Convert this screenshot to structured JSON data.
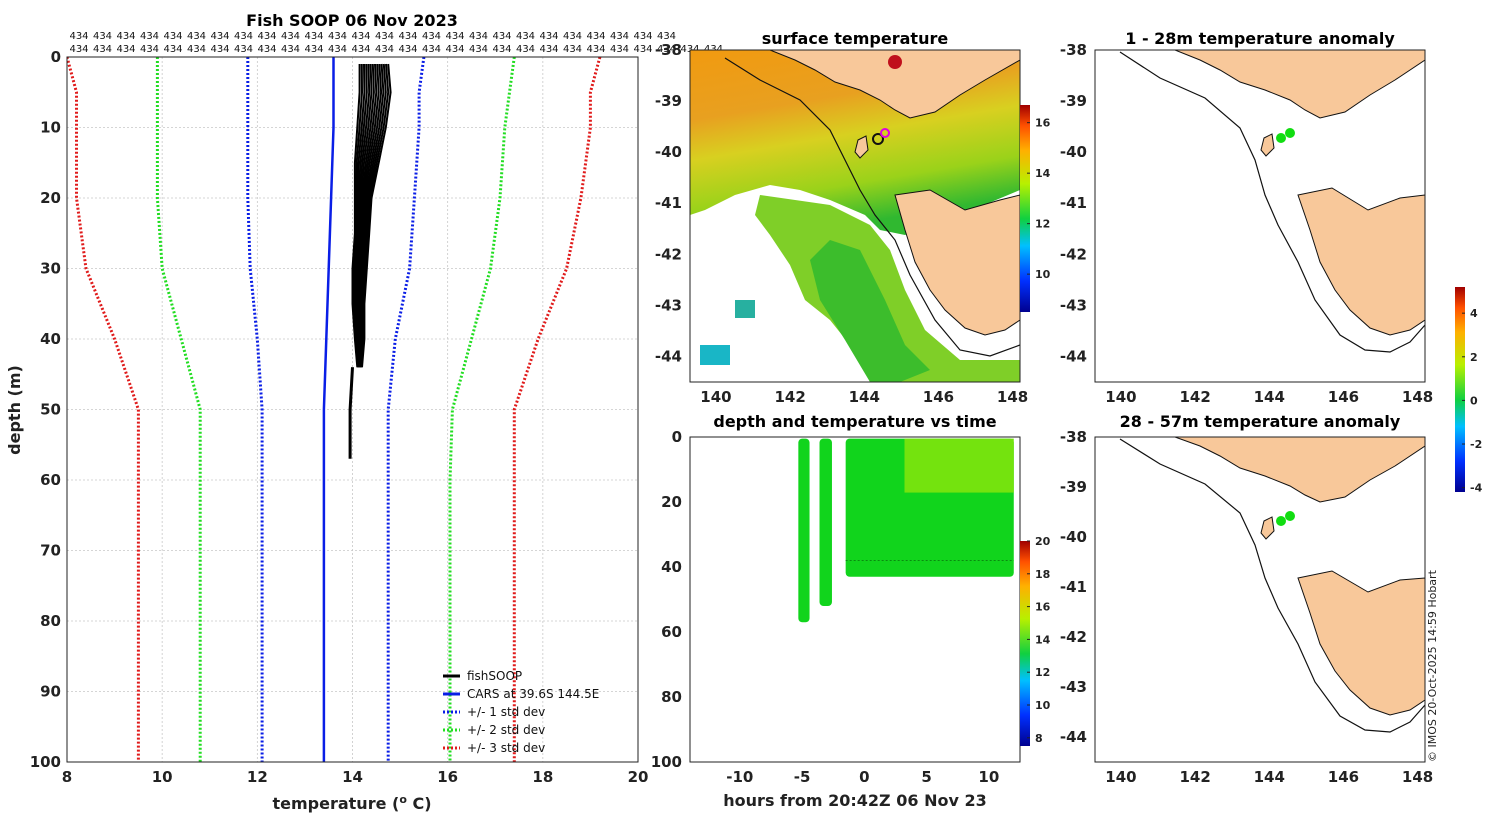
{
  "figure": {
    "credit": "© IMOS 20-Oct-2025 14:59 Hobart",
    "profile_count_label": "434",
    "colors": {
      "fish": "#000000",
      "cars": "#0a1ee6",
      "std1": "#0a1ee6",
      "std2": "#22dd22",
      "std3": "#e01b1b",
      "land": "#f8c89a",
      "point": "#11dd11"
    }
  },
  "chart_data": [
    {
      "id": "profile",
      "type": "line",
      "title": "Fish SOOP 06 Nov 2023",
      "xlabel": "temperature (",
      "xlabel_sup": "o",
      "xlabel_tail": " C)",
      "ylabel": "depth (m)",
      "xlim": [
        8,
        20
      ],
      "ylim": [
        0,
        100
      ],
      "xticks": [
        8,
        10,
        12,
        14,
        16,
        18,
        20
      ],
      "yticks": [
        0,
        10,
        20,
        30,
        40,
        50,
        60,
        70,
        80,
        90,
        100
      ],
      "depth": [
        0,
        5,
        10,
        20,
        30,
        40,
        50,
        60,
        70,
        80,
        90,
        100
      ],
      "series": [
        {
          "name": "CARS at 39.6S 144.5E",
          "style": "solid",
          "color": "#0a1ee6",
          "values": [
            13.6,
            13.6,
            13.6,
            13.55,
            13.5,
            13.45,
            13.4,
            13.4,
            13.4,
            13.4,
            13.4,
            13.4
          ]
        },
        {
          "name": "+/- 1 std dev (low)",
          "style": "dotted",
          "color": "#0a1ee6",
          "values": [
            11.8,
            11.8,
            11.8,
            11.8,
            11.85,
            12.0,
            12.1,
            12.1,
            12.1,
            12.1,
            12.1,
            12.1
          ]
        },
        {
          "name": "+/- 1 std dev (high)",
          "style": "dotted",
          "color": "#0a1ee6",
          "values": [
            15.5,
            15.4,
            15.4,
            15.3,
            15.2,
            14.9,
            14.75,
            14.75,
            14.75,
            14.75,
            14.75,
            14.75
          ]
        },
        {
          "name": "+/- 2 std dev (low)",
          "style": "dotted",
          "color": "#22dd22",
          "values": [
            9.9,
            9.9,
            9.9,
            9.9,
            10.0,
            10.4,
            10.8,
            10.8,
            10.8,
            10.8,
            10.8,
            10.8
          ]
        },
        {
          "name": "+/- 2 std dev (high)",
          "style": "dotted",
          "color": "#22dd22",
          "values": [
            17.4,
            17.3,
            17.2,
            17.1,
            16.9,
            16.5,
            16.1,
            16.05,
            16.05,
            16.05,
            16.05,
            16.05
          ]
        },
        {
          "name": "+/- 3 std dev (low)",
          "style": "dotted",
          "color": "#e01b1b",
          "values": [
            8.0,
            8.2,
            8.2,
            8.2,
            8.4,
            9.0,
            9.5,
            9.5,
            9.5,
            9.5,
            9.5,
            9.5
          ]
        },
        {
          "name": "+/- 3 std dev (high)",
          "style": "dotted",
          "color": "#e01b1b",
          "values": [
            19.2,
            19.0,
            19.0,
            18.8,
            18.5,
            17.9,
            17.4,
            17.4,
            17.4,
            17.4,
            17.4,
            17.4
          ]
        }
      ],
      "fish_profiles": {
        "name": "fishSOOP",
        "depth": [
          1,
          5,
          10,
          15,
          20,
          25,
          30,
          35,
          40,
          44
        ],
        "left_edge": [
          14.15,
          14.15,
          14.1,
          14.05,
          14.05,
          14.05,
          14.0,
          14.0,
          14.05,
          14.1
        ],
        "right_edge": [
          14.75,
          14.8,
          14.7,
          14.55,
          14.4,
          14.35,
          14.3,
          14.25,
          14.25,
          14.2
        ],
        "deep_trace": {
          "depth": [
            44,
            50,
            57
          ],
          "temp": [
            14.0,
            13.95,
            13.95
          ]
        }
      },
      "legend": [
        "fishSOOP",
        "CARS at 39.6S 144.5E",
        "+/- 1 std dev",
        "+/- 2 std dev",
        "+/- 3 std dev"
      ],
      "legend_position": "bottom-right"
    },
    {
      "id": "sst_map",
      "type": "heatmap",
      "title": "surface temperature",
      "xlim": [
        139.3,
        148.2
      ],
      "ylim": [
        -44.5,
        -38
      ],
      "xticks": [
        140,
        142,
        144,
        146,
        148
      ],
      "yticks": [
        -38,
        -39,
        -40,
        -41,
        -42,
        -43,
        -44
      ],
      "colorbar": {
        "ticks": [
          10,
          12,
          14,
          16
        ],
        "range": [
          8.5,
          16.7
        ]
      },
      "fish_location": {
        "lon": 144.6,
        "lat": -39.7
      }
    },
    {
      "id": "time_depth",
      "type": "scatter",
      "title": "depth and temperature vs time",
      "xlabel": "hours from 20:42Z 06 Nov 23",
      "xlim": [
        -14,
        12.5
      ],
      "ylim": [
        0,
        100
      ],
      "xticks": [
        -10,
        -5,
        0,
        5,
        10
      ],
      "yticks": [
        0,
        20,
        40,
        60,
        80,
        100
      ],
      "colorbar": {
        "ticks": [
          8,
          10,
          12,
          14,
          16,
          18,
          20
        ],
        "range": [
          7.5,
          20
        ]
      },
      "blocks": [
        {
          "t_start": -5.3,
          "t_end": -4.4,
          "max_depth": 57
        },
        {
          "t_start": -3.6,
          "t_end": -2.6,
          "max_depth": 52
        },
        {
          "t_start": -1.5,
          "t_end": 12.0,
          "max_depth": 43
        }
      ],
      "mixed_layer_depth": 38
    },
    {
      "id": "anom_upper",
      "type": "scatter",
      "title": "1 - 28m temperature anomaly",
      "xlim": [
        139.3,
        148.2
      ],
      "ylim": [
        -44.5,
        -38
      ],
      "xticks": [
        140,
        142,
        144,
        146,
        148
      ],
      "yticks": [
        -38,
        -39,
        -40,
        -41,
        -42,
        -43,
        -44
      ],
      "points": [
        {
          "lon": 144.6,
          "lat": -39.65
        },
        {
          "lon": 144.45,
          "lat": -39.72
        }
      ],
      "colorbar": {
        "ticks": [
          -4,
          -2,
          0,
          2,
          4
        ],
        "range": [
          -4.2,
          5.2
        ]
      }
    },
    {
      "id": "anom_lower",
      "type": "scatter",
      "title": "28 - 57m temperature anomaly",
      "xlim": [
        139.3,
        148.2
      ],
      "ylim": [
        -44.5,
        -38
      ],
      "xticks": [
        140,
        142,
        144,
        146,
        148
      ],
      "yticks": [
        -38,
        -39,
        -40,
        -41,
        -42,
        -43,
        -44
      ],
      "points": [
        {
          "lon": 144.6,
          "lat": -39.65
        },
        {
          "lon": 144.45,
          "lat": -39.72
        }
      ]
    }
  ]
}
